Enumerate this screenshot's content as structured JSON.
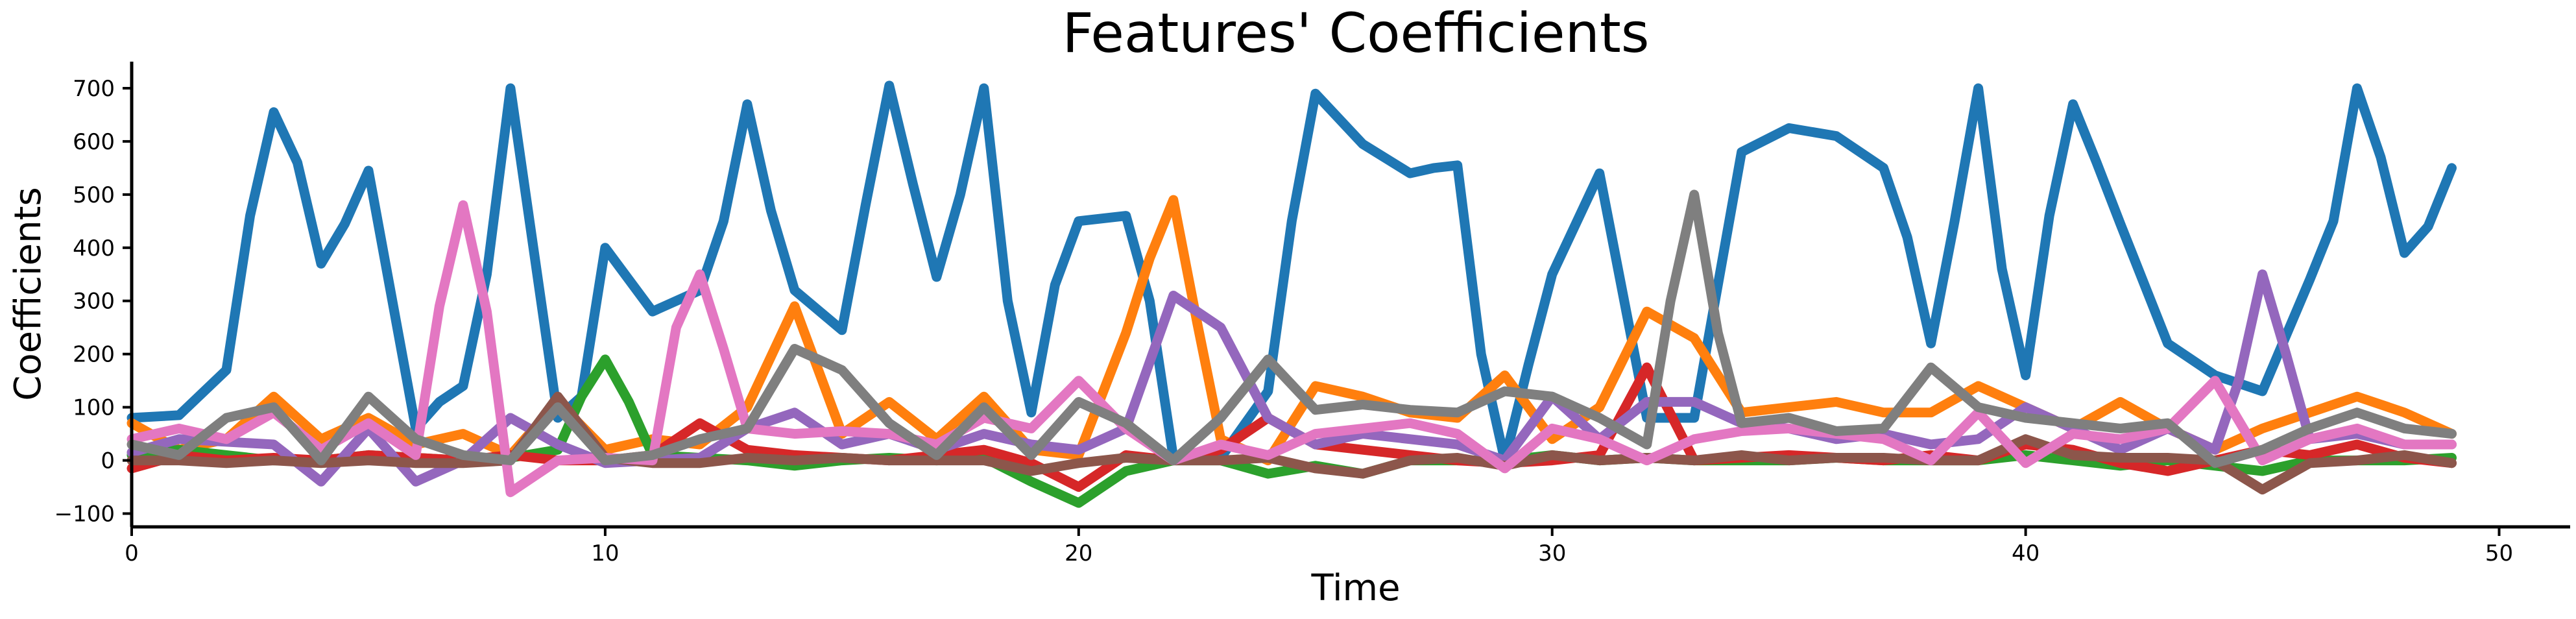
{
  "chart_data": {
    "type": "line",
    "title": "Features' Coefficients",
    "xlabel": "Time",
    "ylabel": "Coefficients",
    "xlim": [
      0,
      51.5
    ],
    "ylim": [
      -125,
      750
    ],
    "xticks": [
      0,
      10,
      20,
      30,
      40,
      50
    ],
    "yticks": [
      -100,
      0,
      100,
      200,
      300,
      400,
      500,
      600,
      700
    ],
    "ytick_labels": [
      "−100",
      "0",
      "100",
      "200",
      "300",
      "400",
      "500",
      "600",
      "700"
    ],
    "grid": false,
    "legend": "none",
    "series": [
      {
        "color": "#1f77b4",
        "x": [
          0,
          1,
          2,
          2.5,
          3,
          3.5,
          4,
          4.5,
          5,
          6,
          6.5,
          7,
          7.5,
          8,
          8.5,
          9,
          9.5,
          10,
          11,
          12,
          12.5,
          13,
          13.5,
          14,
          15,
          15.5,
          16,
          16.5,
          17,
          17.5,
          18,
          18.5,
          19,
          19.5,
          20,
          21,
          21.5,
          22,
          23,
          24,
          24.5,
          25,
          26,
          27,
          27.5,
          28,
          28.5,
          29,
          29.5,
          30,
          31,
          32,
          32.5,
          33,
          34,
          35,
          36,
          37,
          37.5,
          38,
          38.5,
          39,
          39.5,
          40,
          40.5,
          41,
          41.5,
          42,
          43,
          44,
          45,
          46,
          46.5,
          47,
          47.5,
          48,
          48.5,
          49
        ],
        "y": [
          80,
          85,
          170,
          460,
          655,
          560,
          370,
          445,
          545,
          60,
          110,
          140,
          350,
          700,
          390,
          80,
          120,
          400,
          280,
          320,
          450,
          670,
          470,
          320,
          245,
          480,
          705,
          520,
          345,
          500,
          700,
          300,
          90,
          330,
          450,
          460,
          300,
          5,
          5,
          130,
          450,
          690,
          595,
          540,
          550,
          555,
          200,
          0,
          180,
          350,
          540,
          80,
          80,
          80,
          580,
          625,
          610,
          550,
          420,
          220,
          450,
          700,
          360,
          160,
          460,
          670,
          560,
          445,
          220,
          160,
          130,
          340,
          450,
          700,
          570,
          390,
          440,
          550
        ]
      },
      {
        "color": "#ff7f0e",
        "x": [
          0,
          1,
          2,
          3,
          4,
          5,
          6,
          7,
          8,
          9,
          10,
          11,
          12,
          13,
          14,
          15,
          16,
          17,
          18,
          19,
          20,
          21,
          21.5,
          22,
          22.5,
          23,
          24,
          25,
          26,
          27,
          28,
          29,
          30,
          31,
          32,
          33,
          34,
          35,
          36,
          37,
          38,
          39,
          40,
          41,
          42,
          43,
          44,
          45,
          46,
          47,
          48,
          49
        ],
        "y": [
          70,
          20,
          40,
          120,
          40,
          80,
          30,
          50,
          10,
          110,
          20,
          40,
          30,
          100,
          290,
          50,
          110,
          40,
          120,
          20,
          10,
          240,
          380,
          490,
          260,
          40,
          0,
          140,
          120,
          90,
          80,
          160,
          40,
          100,
          280,
          230,
          90,
          100,
          110,
          90,
          90,
          140,
          100,
          60,
          110,
          60,
          20,
          60,
          90,
          120,
          90,
          50
        ]
      },
      {
        "color": "#2ca02c",
        "x": [
          0,
          1,
          2,
          3,
          4,
          5,
          6,
          7,
          8,
          9,
          9.5,
          10,
          10.5,
          11,
          12,
          13,
          14,
          15,
          16,
          17,
          18,
          19,
          20,
          21,
          22,
          23,
          24,
          25,
          26,
          27,
          28,
          29,
          30,
          31,
          32,
          33,
          34,
          35,
          36,
          37,
          38,
          39,
          40,
          41,
          42,
          43,
          44,
          45,
          46,
          47,
          48,
          49
        ],
        "y": [
          10,
          20,
          10,
          0,
          0,
          10,
          5,
          0,
          5,
          20,
          120,
          190,
          110,
          10,
          5,
          0,
          -10,
          0,
          5,
          0,
          5,
          -40,
          -80,
          -20,
          0,
          0,
          -25,
          -10,
          -25,
          0,
          0,
          0,
          10,
          0,
          5,
          0,
          0,
          0,
          5,
          0,
          0,
          0,
          10,
          0,
          -10,
          0,
          -10,
          -20,
          0,
          0,
          0,
          5
        ]
      },
      {
        "color": "#d62728",
        "x": [
          0,
          1,
          2,
          3,
          4,
          5,
          6,
          7,
          8,
          9,
          10,
          11,
          12,
          13,
          14,
          15,
          16,
          17,
          18,
          19,
          20,
          21,
          22,
          23,
          24,
          25,
          26,
          27,
          28,
          29,
          30,
          31,
          32,
          33,
          34,
          35,
          36,
          37,
          38,
          39,
          40,
          41,
          42,
          43,
          44,
          45,
          46,
          47,
          48,
          49
        ],
        "y": [
          -15,
          10,
          0,
          5,
          0,
          10,
          5,
          0,
          10,
          0,
          0,
          10,
          70,
          20,
          10,
          5,
          0,
          10,
          20,
          -5,
          -50,
          10,
          0,
          20,
          80,
          30,
          20,
          10,
          0,
          -5,
          0,
          10,
          175,
          0,
          5,
          10,
          5,
          0,
          10,
          0,
          30,
          20,
          -5,
          -20,
          0,
          20,
          10,
          30,
          5,
          -5
        ]
      },
      {
        "color": "#9467bd",
        "x": [
          0,
          1,
          2,
          3,
          4,
          5,
          6,
          7,
          8,
          9,
          10,
          11,
          12,
          13,
          14,
          15,
          16,
          17,
          18,
          19,
          20,
          21,
          22,
          23,
          24,
          25,
          26,
          27,
          28,
          29,
          30,
          31,
          32,
          33,
          34,
          35,
          36,
          37,
          38,
          39,
          40,
          41,
          42,
          43,
          44,
          44.5,
          45,
          45.5,
          46,
          47,
          48,
          49
        ],
        "y": [
          15,
          40,
          35,
          30,
          -40,
          60,
          -40,
          0,
          80,
          30,
          -5,
          0,
          5,
          60,
          90,
          30,
          50,
          20,
          50,
          30,
          20,
          60,
          310,
          250,
          80,
          30,
          50,
          40,
          30,
          0,
          120,
          40,
          110,
          110,
          70,
          60,
          40,
          50,
          30,
          40,
          100,
          60,
          20,
          60,
          20,
          150,
          350,
          200,
          40,
          50,
          30,
          30
        ]
      },
      {
        "color": "#8c564b",
        "x": [
          0,
          1,
          2,
          3,
          4,
          5,
          6,
          7,
          8,
          9,
          10,
          11,
          12,
          13,
          14,
          15,
          16,
          17,
          18,
          19,
          20,
          21,
          22,
          23,
          24,
          25,
          26,
          27,
          28,
          29,
          30,
          31,
          32,
          33,
          34,
          35,
          36,
          37,
          38,
          39,
          40,
          41,
          42,
          43,
          44,
          45,
          46,
          47,
          48,
          49
        ],
        "y": [
          0,
          0,
          -5,
          0,
          -5,
          0,
          -5,
          -5,
          0,
          120,
          5,
          -5,
          -5,
          5,
          0,
          5,
          0,
          0,
          0,
          -20,
          -5,
          5,
          0,
          0,
          5,
          -15,
          -25,
          0,
          5,
          -10,
          10,
          0,
          5,
          0,
          10,
          0,
          5,
          5,
          0,
          0,
          40,
          10,
          5,
          5,
          0,
          -55,
          -5,
          0,
          10,
          -5
        ]
      },
      {
        "color": "#e377c2",
        "x": [
          0,
          1,
          2,
          3,
          4,
          5,
          6,
          6.5,
          7,
          7.5,
          8,
          9,
          10,
          11,
          11.5,
          12,
          12.5,
          13,
          14,
          15,
          16,
          17,
          18,
          19,
          20,
          21,
          22,
          23,
          24,
          25,
          26,
          27,
          28,
          29,
          30,
          31,
          32,
          33,
          34,
          35,
          36,
          37,
          38,
          39,
          40,
          41,
          42,
          43,
          44,
          45,
          46,
          47,
          48,
          49
        ],
        "y": [
          40,
          60,
          40,
          90,
          20,
          70,
          10,
          290,
          480,
          280,
          -60,
          0,
          5,
          0,
          250,
          350,
          210,
          60,
          50,
          55,
          50,
          30,
          80,
          60,
          150,
          60,
          0,
          30,
          10,
          50,
          60,
          70,
          50,
          -15,
          60,
          40,
          0,
          40,
          55,
          60,
          50,
          40,
          0,
          90,
          -5,
          50,
          40,
          60,
          150,
          0,
          40,
          60,
          30,
          30
        ]
      },
      {
        "color": "#7f7f7f",
        "x": [
          0,
          1,
          2,
          3,
          4,
          5,
          6,
          7,
          8,
          9,
          10,
          11,
          12,
          13,
          14,
          15,
          16,
          17,
          18,
          19,
          20,
          21,
          22,
          23,
          24,
          25,
          26,
          27,
          28,
          29,
          30,
          31,
          32,
          32.5,
          33,
          33.5,
          34,
          35,
          36,
          37,
          38,
          39,
          40,
          41,
          42,
          43,
          44,
          45,
          46,
          47,
          48,
          49
        ],
        "y": [
          30,
          10,
          80,
          100,
          0,
          120,
          40,
          10,
          0,
          100,
          0,
          10,
          40,
          60,
          210,
          170,
          70,
          10,
          100,
          10,
          110,
          70,
          0,
          80,
          190,
          95,
          105,
          95,
          90,
          130,
          120,
          80,
          30,
          300,
          500,
          240,
          70,
          80,
          55,
          60,
          175,
          100,
          80,
          70,
          60,
          70,
          -5,
          20,
          60,
          90,
          60,
          50
        ]
      }
    ]
  }
}
